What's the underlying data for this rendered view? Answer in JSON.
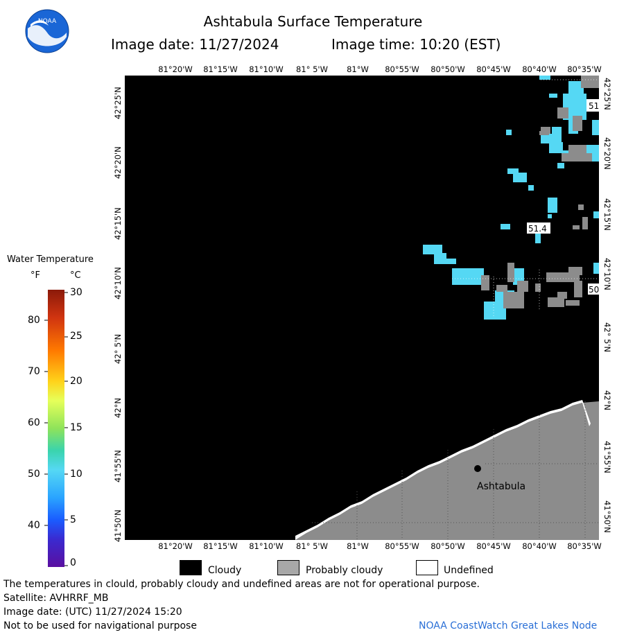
{
  "header": {
    "title": "Ashtabula Surface Temperature",
    "image_date": "Image date: 11/27/2024",
    "image_time": "Image time: 10:20 (EST)"
  },
  "logo": {
    "text": "NOAA",
    "colors": {
      "outer": "#1a73e8",
      "inner": "#ffffff"
    }
  },
  "map": {
    "lon_labels": [
      "81°20'W",
      "81°15'W",
      "81°10'W",
      "81° 5'W",
      "81°W",
      "80°55'W",
      "80°50'W",
      "80°45'W",
      "80°40'W",
      "80°35'W"
    ],
    "lat_labels": [
      "42°25'N",
      "42°20'N",
      "42°15'N",
      "42°10'N",
      "42° 5'N",
      "42°N",
      "41°55'N",
      "41°50'N"
    ],
    "place_label": "Ashtabula",
    "temp_labels": [
      "51",
      "51.4",
      "50"
    ],
    "colors": {
      "cloudy": "#000000",
      "probably_cloudy": "#8c8c8c",
      "water_51": "#55d8f4",
      "undefined": "#ffffff"
    }
  },
  "colorbar": {
    "title": "Water Temperature",
    "unit_f": "°F",
    "unit_c": "°C",
    "f_ticks": [
      "80",
      "70",
      "60",
      "50",
      "40"
    ],
    "c_ticks": [
      "30",
      "25",
      "20",
      "15",
      "10",
      "5",
      "0"
    ]
  },
  "legend": {
    "cloudy": "Cloudy",
    "probably_cloudy": "Probably cloudy",
    "undefined": "Undefined"
  },
  "footer": {
    "disclaimer": "The temperatures in clould, probably cloudy and undefined areas are not for operational purpose.",
    "satellite": "Satellite: AVHRRF_MB",
    "utc_date": "Image date: (UTC) 11/27/2024  15:20",
    "nav_warning": "Not to be used for navigational purpose",
    "credit": "NOAA CoastWatch Great Lakes Node"
  }
}
